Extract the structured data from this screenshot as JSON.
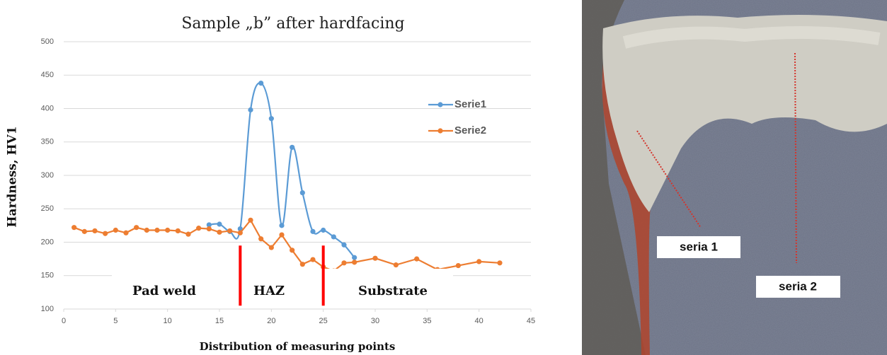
{
  "chart_data": {
    "type": "line",
    "title": "Sample „b” after hardfacing",
    "xlabel": "Distribution of measuring points",
    "ylabel": "Hardness, HV1",
    "xlim": [
      0,
      45
    ],
    "xticks": [
      0,
      5,
      10,
      15,
      20,
      25,
      30,
      35,
      40,
      45
    ],
    "ylim": [
      100,
      500
    ],
    "yticks": [
      100,
      150,
      200,
      250,
      300,
      350,
      400,
      450,
      500
    ],
    "grid": true,
    "legend": "right",
    "series": [
      {
        "name": "Serie1",
        "color": "#5b9bd5",
        "smooth": true,
        "x": [
          14,
          15,
          16,
          17,
          18,
          19,
          20,
          21,
          22,
          23,
          24,
          25,
          26,
          27,
          28
        ],
        "values": [
          226,
          227,
          216,
          220,
          398,
          438,
          385,
          225,
          342,
          274,
          216,
          218,
          208,
          196,
          177
        ]
      },
      {
        "name": "Serie2",
        "color": "#ed7d31",
        "smooth": false,
        "x": [
          1,
          2,
          3,
          4,
          5,
          6,
          7,
          8,
          9,
          10,
          11,
          12,
          13,
          14,
          15,
          16,
          17,
          18,
          19,
          20,
          21,
          22,
          23,
          24,
          25,
          26,
          27,
          28,
          30,
          32,
          34,
          36,
          38,
          40,
          42
        ],
        "values": [
          222,
          216,
          217,
          213,
          218,
          214,
          222,
          218,
          218,
          218,
          217,
          212,
          221,
          220,
          215,
          217,
          214,
          233,
          205,
          192,
          211,
          188,
          167,
          174,
          163,
          157,
          169,
          170,
          176,
          166,
          175,
          159,
          165,
          171,
          169
        ]
      }
    ],
    "dividers": {
      "color": "#ff0000",
      "x": [
        17,
        25
      ],
      "range": [
        105,
        195
      ]
    },
    "annotations": [
      "Pad weld",
      "HAZ",
      "Substrate"
    ]
  },
  "photo": {
    "labels": [
      "seria 1",
      "seria 2"
    ]
  }
}
